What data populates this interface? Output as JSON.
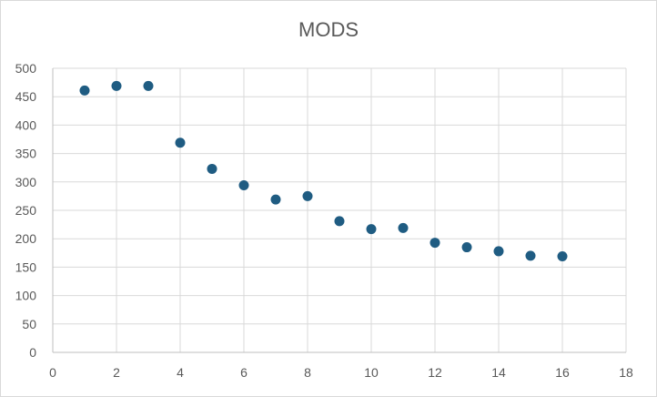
{
  "chart_data": {
    "type": "scatter",
    "title": "MODS",
    "xlabel": "",
    "ylabel": "",
    "xlim": [
      0,
      18
    ],
    "ylim": [
      0,
      500
    ],
    "xticks": [
      0,
      2,
      4,
      6,
      8,
      10,
      12,
      14,
      16,
      18
    ],
    "yticks": [
      0,
      50,
      100,
      150,
      200,
      250,
      300,
      350,
      400,
      450,
      500
    ],
    "grid": true,
    "legend": "none",
    "marker_color": "#1f5c82",
    "series": [
      {
        "points": [
          {
            "x": 1,
            "y": 461
          },
          {
            "x": 2,
            "y": 469
          },
          {
            "x": 3,
            "y": 469
          },
          {
            "x": 4,
            "y": 369
          },
          {
            "x": 5,
            "y": 323
          },
          {
            "x": 6,
            "y": 294
          },
          {
            "x": 7,
            "y": 269
          },
          {
            "x": 8,
            "y": 275
          },
          {
            "x": 9,
            "y": 231
          },
          {
            "x": 10,
            "y": 217
          },
          {
            "x": 11,
            "y": 219
          },
          {
            "x": 12,
            "y": 193
          },
          {
            "x": 13,
            "y": 185
          },
          {
            "x": 14,
            "y": 178
          },
          {
            "x": 15,
            "y": 170
          },
          {
            "x": 16,
            "y": 169
          }
        ]
      }
    ]
  }
}
